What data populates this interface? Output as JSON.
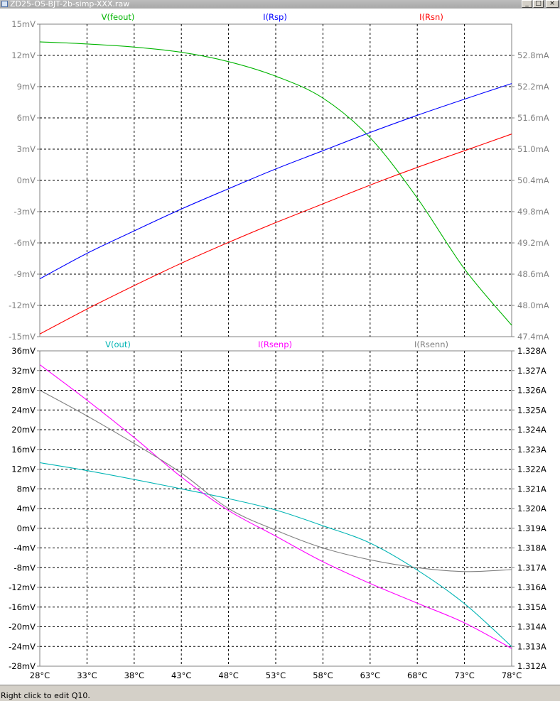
{
  "window": {
    "title": "ZD25-OS-BJT-2b-simp-XXX.raw",
    "minimize": "_",
    "maximize": "□",
    "close": "×"
  },
  "status": {
    "text": "Right click to edit Q10."
  },
  "colors": {
    "feout": "#00b400",
    "rsp": "#0000ff",
    "rsn": "#ff0000",
    "out": "#00b4b4",
    "rsenp": "#ff00ff",
    "rsenn": "#808080",
    "axis": "#808080"
  },
  "chart_data": [
    {
      "type": "line",
      "grid": true,
      "x_ticks": [
        "28°C",
        "33°C",
        "38°C",
        "43°C",
        "48°C",
        "53°C",
        "58°C",
        "63°C",
        "68°C",
        "73°C",
        "78°C"
      ],
      "xlim": [
        28,
        78
      ],
      "left_ticks": [
        "15mV",
        "12mV",
        "9mV",
        "6mV",
        "3mV",
        "0mV",
        "-3mV",
        "-6mV",
        "-9mV",
        "-12mV",
        "-15mV"
      ],
      "left_ylim": [
        -15,
        15
      ],
      "right_ticks": [
        "52.8mA",
        "52.2mA",
        "51.6mA",
        "51.0mA",
        "50.4mA",
        "49.8mA",
        "49.2mA",
        "48.6mA",
        "48.0mA",
        "47.4mA"
      ],
      "right_ylim": [
        47.4,
        53.4
      ],
      "series": [
        {
          "name": "V(feout)",
          "axis": "left",
          "color": "#00b400",
          "x": [
            28,
            33,
            38,
            43,
            48,
            53,
            58,
            63,
            68,
            73,
            78
          ],
          "y": [
            13.3,
            13.1,
            12.8,
            12.3,
            11.4,
            10.0,
            7.9,
            4.1,
            -1.7,
            -8.5,
            -13.9
          ]
        },
        {
          "name": "I(Rsp)",
          "axis": "right",
          "color": "#0000ff",
          "x": [
            28,
            33,
            38,
            43,
            48,
            53,
            58,
            63,
            68,
            73,
            78
          ],
          "y": [
            48.51,
            49.0,
            49.43,
            49.85,
            50.24,
            50.62,
            50.97,
            51.32,
            51.65,
            51.96,
            52.26
          ]
        },
        {
          "name": "I(Rsn)",
          "axis": "right",
          "color": "#ff0000",
          "x": [
            28,
            33,
            38,
            43,
            48,
            53,
            58,
            63,
            68,
            73,
            78
          ],
          "y": [
            47.45,
            47.93,
            48.38,
            48.81,
            49.21,
            49.59,
            49.95,
            50.31,
            50.65,
            50.97,
            51.29
          ]
        }
      ]
    },
    {
      "type": "line",
      "grid": true,
      "x_ticks": [
        "28°C",
        "33°C",
        "38°C",
        "43°C",
        "48°C",
        "53°C",
        "58°C",
        "63°C",
        "68°C",
        "73°C",
        "78°C"
      ],
      "xlim": [
        28,
        78
      ],
      "left_ticks": [
        "36mV",
        "32mV",
        "28mV",
        "24mV",
        "20mV",
        "16mV",
        "12mV",
        "8mV",
        "4mV",
        "0mV",
        "-4mV",
        "-8mV",
        "-12mV",
        "-16mV",
        "-20mV",
        "-24mV",
        "-28mV"
      ],
      "left_ylim": [
        -28,
        36
      ],
      "right_ticks": [
        "1.328A",
        "1.327A",
        "1.326A",
        "1.325A",
        "1.324A",
        "1.323A",
        "1.322A",
        "1.321A",
        "1.320A",
        "1.319A",
        "1.318A",
        "1.317A",
        "1.316A",
        "1.315A",
        "1.314A",
        "1.313A",
        "1.312A"
      ],
      "right_ylim": [
        1.312,
        1.328
      ],
      "series": [
        {
          "name": "V(out)",
          "axis": "left",
          "color": "#00b4b4",
          "x": [
            28,
            33,
            38,
            43,
            48,
            53,
            58,
            63,
            68,
            73,
            78
          ],
          "y": [
            13.3,
            11.7,
            9.9,
            8.0,
            6.0,
            3.7,
            0.5,
            -3.0,
            -8.5,
            -15.3,
            -24.0
          ]
        },
        {
          "name": "I(Rsenp)",
          "axis": "right",
          "color": "#ff00ff",
          "x": [
            28,
            33,
            38,
            43,
            48,
            53,
            58,
            63,
            68,
            73,
            78
          ],
          "y": [
            1.3273,
            1.3255,
            1.3236,
            1.3216,
            1.3199,
            1.3186,
            1.3173,
            1.3162,
            1.3152,
            1.3142,
            1.3129
          ]
        },
        {
          "name": "I(Rsenn)",
          "axis": "right",
          "color": "#808080",
          "x": [
            28,
            33,
            38,
            43,
            48,
            53,
            58,
            63,
            68,
            73,
            78
          ],
          "y": [
            1.326,
            1.3247,
            1.3233,
            1.3218,
            1.32,
            1.3189,
            1.318,
            1.3174,
            1.317,
            1.3168,
            1.3169
          ]
        }
      ]
    }
  ]
}
